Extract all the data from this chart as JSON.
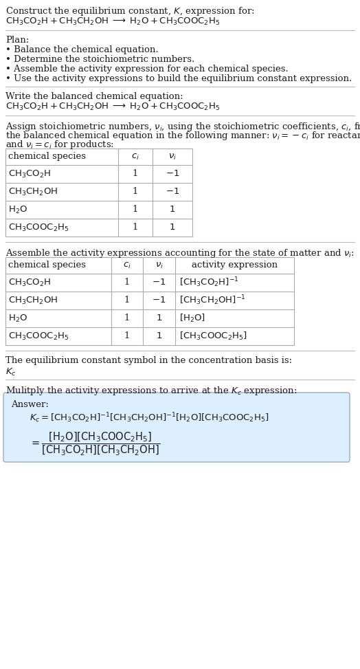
{
  "bg_color": "#ffffff",
  "text_color": "#1a1a1a",
  "title_line1": "Construct the equilibrium constant, $K$, expression for:",
  "title_line2": "$\\mathrm{CH_3CO_2H + CH_3CH_2OH \\;\\longrightarrow\\; H_2O + CH_3COOC_2H_5}$",
  "plan_header": "Plan:",
  "plan_bullets": [
    "• Balance the chemical equation.",
    "• Determine the stoichiometric numbers.",
    "• Assemble the activity expression for each chemical species.",
    "• Use the activity expressions to build the equilibrium constant expression."
  ],
  "balanced_header": "Write the balanced chemical equation:",
  "balanced_eq": "$\\mathrm{CH_3CO_2H + CH_3CH_2OH \\;\\longrightarrow\\; H_2O + CH_3COOC_2H_5}$",
  "stoich_intro": "Assign stoichiometric numbers, $\\nu_i$, using the stoichiometric coefficients, $c_i$, from",
  "stoich_intro2": "the balanced chemical equation in the following manner: $\\nu_i = -c_i$ for reactants",
  "stoich_intro3": "and $\\nu_i = c_i$ for products:",
  "table1_headers": [
    "chemical species",
    "$c_i$",
    "$\\nu_i$"
  ],
  "table1_rows": [
    [
      "$\\mathrm{CH_3CO_2H}$",
      "1",
      "$-1$"
    ],
    [
      "$\\mathrm{CH_3CH_2OH}$",
      "1",
      "$-1$"
    ],
    [
      "$\\mathrm{H_2O}$",
      "1",
      "$1$"
    ],
    [
      "$\\mathrm{CH_3COOC_2H_5}$",
      "1",
      "$1$"
    ]
  ],
  "assemble_header": "Assemble the activity expressions accounting for the state of matter and $\\nu_i$:",
  "table2_headers": [
    "chemical species",
    "$c_i$",
    "$\\nu_i$",
    "activity expression"
  ],
  "table2_rows": [
    [
      "$\\mathrm{CH_3CO_2H}$",
      "1",
      "$-1$",
      "$[\\mathrm{CH_3CO_2H}]^{-1}$"
    ],
    [
      "$\\mathrm{CH_3CH_2OH}$",
      "1",
      "$-1$",
      "$[\\mathrm{CH_3CH_2OH}]^{-1}$"
    ],
    [
      "$\\mathrm{H_2O}$",
      "1",
      "$1$",
      "$[\\mathrm{H_2O}]$"
    ],
    [
      "$\\mathrm{CH_3COOC_2H_5}$",
      "1",
      "$1$",
      "$[\\mathrm{CH_3COOC_2H_5}]$"
    ]
  ],
  "kc_header": "The equilibrium constant symbol in the concentration basis is:",
  "kc_symbol": "$K_c$",
  "multiply_header": "Mulitply the activity expressions to arrive at the $K_c$ expression:",
  "answer_label": "Answer:",
  "answer_line1": "$K_c = [\\mathrm{CH_3CO_2H}]^{-1}[\\mathrm{CH_3CH_2OH}]^{-1}[\\mathrm{H_2O}][\\mathrm{CH_3COOC_2H_5}]$",
  "answer_eq_lhs": "$= \\dfrac{[\\mathrm{H_2O}][\\mathrm{CH_3COOC_2H_5}]}{[\\mathrm{CH_3CO_2H}][\\mathrm{CH_3CH_2OH}]}$",
  "hline_color": "#bbbbbb",
  "table_border_color": "#aaaaaa",
  "answer_box_bg": "#ddeeff",
  "answer_box_border": "#99aacc"
}
